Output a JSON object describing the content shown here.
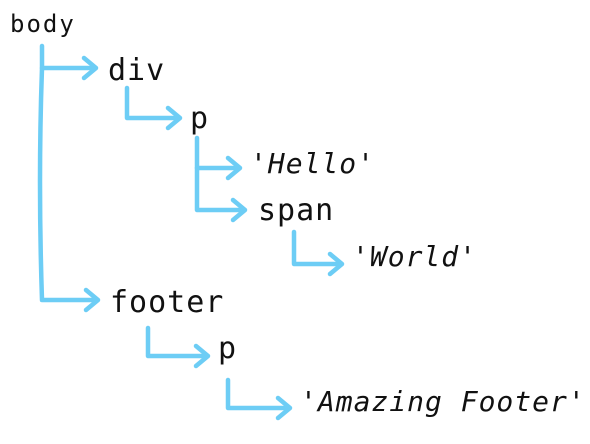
{
  "tree": {
    "body": "body",
    "div": "div",
    "p_1": "p",
    "hello": "'Hello'",
    "span": "span",
    "world": "'World'",
    "footer": "footer",
    "p_2": "p",
    "amazing_footer": "'Amazing Footer'"
  },
  "colors": {
    "connector": "#6dcdf5",
    "text": "#111111",
    "background": "#ffffff"
  }
}
